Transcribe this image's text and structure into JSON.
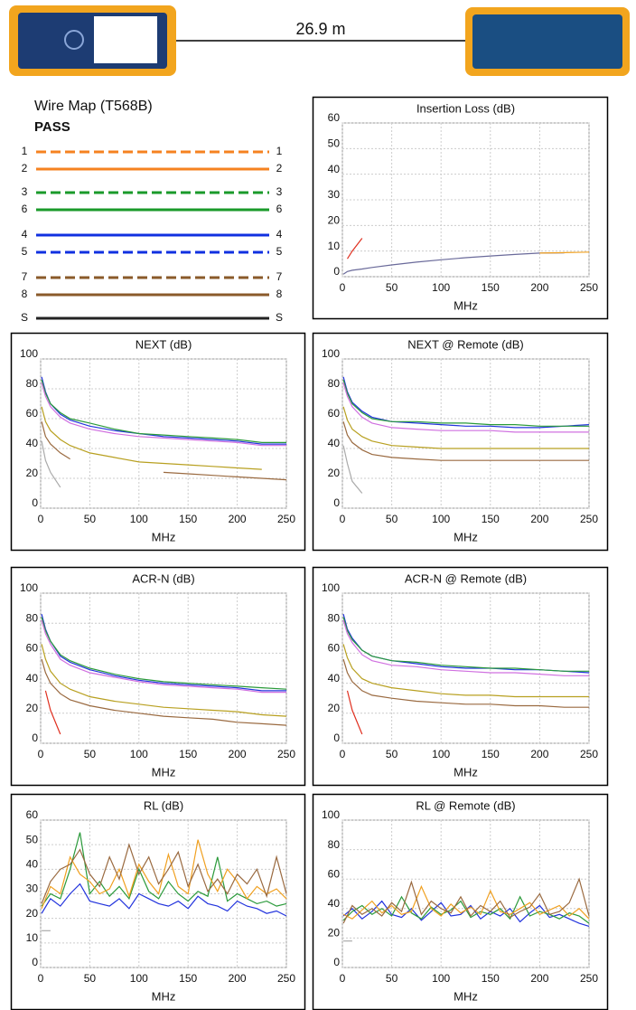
{
  "cable": {
    "length": "26.9 m"
  },
  "wire_map": {
    "title": "Wire Map (T568B)",
    "result": "PASS",
    "pairs": [
      {
        "left": "1",
        "right": "1",
        "color": "#f58220",
        "dashed": true
      },
      {
        "left": "2",
        "right": "2",
        "color": "#f58220",
        "dashed": false
      },
      {
        "left": "3",
        "right": "3",
        "color": "#1a9a2a",
        "dashed": true
      },
      {
        "left": "6",
        "right": "6",
        "color": "#1a9a2a",
        "dashed": false
      },
      {
        "left": "4",
        "right": "4",
        "color": "#1030e0",
        "dashed": false
      },
      {
        "left": "5",
        "right": "5",
        "color": "#1030e0",
        "dashed": true
      },
      {
        "left": "7",
        "right": "7",
        "color": "#8a5a2a",
        "dashed": true
      },
      {
        "left": "8",
        "right": "8",
        "color": "#8a5a2a",
        "dashed": false
      },
      {
        "left": "S",
        "right": "S",
        "color": "#222222",
        "dashed": false
      }
    ]
  },
  "chart_data": [
    {
      "type": "line",
      "title": "Insertion Loss (dB)",
      "x_label": "MHz",
      "x": [
        1,
        5,
        10,
        20,
        30,
        50,
        75,
        100,
        125,
        150,
        175,
        200,
        225,
        250
      ],
      "xlim": [
        0,
        250
      ],
      "xticks": [
        0,
        50,
        100,
        150,
        200,
        250
      ],
      "ylim": [
        0,
        60
      ],
      "yticks": [
        0,
        10,
        20,
        30,
        40,
        50,
        60
      ],
      "grid": true,
      "series": [
        {
          "color": "#6a6a9a",
          "values": [
            1,
            2,
            2.5,
            3,
            3.6,
            4.6,
            5.7,
            6.6,
            7.4,
            8.1,
            8.7,
            9.2,
            9.3,
            null
          ]
        },
        {
          "color": "#f0a020",
          "values": [
            null,
            null,
            null,
            null,
            null,
            null,
            null,
            null,
            null,
            null,
            null,
            9.2,
            9.4,
            9.6
          ]
        },
        {
          "color": "#e03020",
          "values": [
            null,
            7,
            10,
            15,
            null,
            null,
            null,
            null,
            null,
            null,
            null,
            null,
            null,
            null
          ]
        }
      ]
    },
    {
      "type": "line",
      "title": "NEXT (dB)",
      "x_label": "MHz",
      "x": [
        1,
        5,
        10,
        20,
        30,
        50,
        75,
        100,
        125,
        150,
        175,
        200,
        225,
        250
      ],
      "xlim": [
        0,
        250
      ],
      "xticks": [
        0,
        50,
        100,
        150,
        200,
        250
      ],
      "ylim": [
        0,
        100
      ],
      "yticks": [
        0,
        20,
        40,
        60,
        80,
        100
      ],
      "grid": true,
      "series": [
        {
          "color": "#2233dd",
          "values": [
            88,
            78,
            70,
            63,
            59,
            55,
            52,
            50,
            48,
            47,
            46,
            45,
            43,
            43
          ]
        },
        {
          "color": "#2a9a3a",
          "values": [
            86,
            77,
            70,
            64,
            60,
            57,
            53,
            50,
            49,
            48,
            47,
            46,
            44,
            44
          ]
        },
        {
          "color": "#d070e0",
          "values": [
            84,
            75,
            68,
            61,
            57,
            53,
            50,
            48,
            47,
            46,
            45,
            44,
            42,
            42
          ]
        },
        {
          "color": "#b8a020",
          "values": [
            68,
            58,
            52,
            46,
            42,
            37,
            34,
            31,
            30,
            29,
            28,
            27,
            26,
            null
          ]
        },
        {
          "color": "#9a6a40",
          "values": [
            58,
            48,
            43,
            37,
            33,
            null,
            27,
            null,
            24,
            23,
            22,
            21,
            20,
            19
          ]
        },
        {
          "color": "#aaaaaa",
          "values": [
            45,
            32,
            24,
            14,
            null,
            null,
            null,
            null,
            null,
            null,
            null,
            null,
            null,
            null
          ]
        }
      ]
    },
    {
      "type": "line",
      "title": "NEXT @ Remote (dB)",
      "x_label": "MHz",
      "x": [
        1,
        5,
        10,
        20,
        30,
        50,
        75,
        100,
        125,
        150,
        175,
        200,
        225,
        250
      ],
      "xlim": [
        0,
        250
      ],
      "xticks": [
        0,
        50,
        100,
        150,
        200,
        250
      ],
      "ylim": [
        0,
        100
      ],
      "yticks": [
        0,
        20,
        40,
        60,
        80,
        100
      ],
      "grid": true,
      "series": [
        {
          "color": "#2233dd",
          "values": [
            88,
            78,
            71,
            65,
            61,
            58,
            57,
            56,
            55,
            55,
            54,
            54,
            55,
            56
          ]
        },
        {
          "color": "#2a9a3a",
          "values": [
            86,
            77,
            70,
            64,
            60,
            58,
            58,
            57,
            57,
            56,
            56,
            55,
            55,
            55
          ]
        },
        {
          "color": "#d070e0",
          "values": [
            84,
            75,
            68,
            61,
            57,
            54,
            53,
            52,
            52,
            52,
            51,
            51,
            51,
            51
          ]
        },
        {
          "color": "#b8a020",
          "values": [
            68,
            59,
            53,
            48,
            45,
            42,
            41,
            40,
            40,
            40,
            40,
            40,
            40,
            40
          ]
        },
        {
          "color": "#9a6a40",
          "values": [
            58,
            49,
            44,
            39,
            36,
            34,
            33,
            32,
            32,
            32,
            32,
            32,
            32,
            32
          ]
        },
        {
          "color": "#aaaaaa",
          "values": [
            42,
            30,
            18,
            10,
            null,
            null,
            null,
            null,
            null,
            null,
            null,
            null,
            null,
            null
          ]
        }
      ]
    },
    {
      "type": "line",
      "title": "ACR-N (dB)",
      "x_label": "MHz",
      "x": [
        1,
        5,
        10,
        20,
        30,
        50,
        75,
        100,
        125,
        150,
        175,
        200,
        225,
        250
      ],
      "xlim": [
        0,
        250
      ],
      "xticks": [
        0,
        50,
        100,
        150,
        200,
        250
      ],
      "ylim": [
        0,
        100
      ],
      "yticks": [
        0,
        20,
        40,
        60,
        80,
        100
      ],
      "grid": true,
      "series": [
        {
          "color": "#2233dd",
          "values": [
            86,
            76,
            68,
            58,
            54,
            49,
            45,
            42,
            40,
            39,
            38,
            37,
            35,
            35
          ]
        },
        {
          "color": "#2a9a3a",
          "values": [
            84,
            75,
            68,
            59,
            55,
            50,
            46,
            43,
            41,
            40,
            39,
            38,
            37,
            36
          ]
        },
        {
          "color": "#d070e0",
          "values": [
            82,
            73,
            66,
            56,
            52,
            47,
            44,
            41,
            39,
            38,
            37,
            36,
            34,
            34
          ]
        },
        {
          "color": "#b8a020",
          "values": [
            66,
            56,
            48,
            40,
            36,
            31,
            28,
            26,
            24,
            23,
            22,
            21,
            19,
            18
          ]
        },
        {
          "color": "#9a6a40",
          "values": [
            56,
            47,
            40,
            33,
            29,
            25,
            22,
            20,
            18,
            17,
            16,
            14,
            13,
            12
          ]
        },
        {
          "color": "#e03020",
          "values": [
            null,
            35,
            22,
            6,
            null,
            null,
            null,
            null,
            null,
            null,
            null,
            null,
            null,
            null
          ]
        }
      ]
    },
    {
      "type": "line",
      "title": "ACR-N @ Remote (dB)",
      "x_label": "MHz",
      "x": [
        1,
        5,
        10,
        20,
        30,
        50,
        75,
        100,
        125,
        150,
        175,
        200,
        225,
        250
      ],
      "xlim": [
        0,
        250
      ],
      "xticks": [
        0,
        50,
        100,
        150,
        200,
        250
      ],
      "ylim": [
        0,
        100
      ],
      "yticks": [
        0,
        20,
        40,
        60,
        80,
        100
      ],
      "grid": true,
      "series": [
        {
          "color": "#2233dd",
          "values": [
            86,
            76,
            70,
            62,
            58,
            55,
            53,
            51,
            50,
            50,
            49,
            49,
            48,
            47
          ]
        },
        {
          "color": "#2a9a3a",
          "values": [
            84,
            75,
            69,
            62,
            58,
            55,
            54,
            52,
            51,
            50,
            50,
            49,
            48,
            48
          ]
        },
        {
          "color": "#d070e0",
          "values": [
            82,
            73,
            67,
            59,
            55,
            52,
            51,
            49,
            48,
            47,
            47,
            46,
            45,
            45
          ]
        },
        {
          "color": "#b8a020",
          "values": [
            66,
            57,
            50,
            43,
            40,
            37,
            35,
            33,
            32,
            32,
            31,
            31,
            31,
            31
          ]
        },
        {
          "color": "#9a6a40",
          "values": [
            56,
            47,
            41,
            35,
            32,
            30,
            28,
            27,
            26,
            26,
            25,
            25,
            24,
            24
          ]
        },
        {
          "color": "#e03020",
          "values": [
            null,
            35,
            22,
            6,
            null,
            null,
            null,
            null,
            null,
            null,
            null,
            null,
            null,
            null
          ]
        }
      ]
    },
    {
      "type": "line",
      "title": "RL (dB)",
      "x_label": "MHz",
      "x": [
        1,
        10,
        20,
        30,
        40,
        50,
        60,
        70,
        80,
        90,
        100,
        110,
        120,
        130,
        140,
        150,
        160,
        170,
        180,
        190,
        200,
        210,
        220,
        230,
        240,
        250
      ],
      "xlim": [
        0,
        250
      ],
      "xticks": [
        0,
        50,
        100,
        150,
        200,
        250
      ],
      "ylim": [
        0,
        60
      ],
      "yticks": [
        0,
        10,
        20,
        30,
        40,
        50,
        60
      ],
      "grid": true,
      "series": [
        {
          "color": "#2233dd",
          "values": [
            22,
            28,
            25,
            30,
            34,
            27,
            26,
            25,
            28,
            24,
            30,
            28,
            26,
            25,
            27,
            24,
            29,
            26,
            25,
            23,
            27,
            25,
            24,
            22,
            23,
            21
          ]
        },
        {
          "color": "#2a9a3a",
          "values": [
            25,
            30,
            28,
            40,
            55,
            30,
            35,
            29,
            33,
            28,
            40,
            31,
            28,
            35,
            30,
            27,
            31,
            29,
            45,
            27,
            30,
            28,
            26,
            27,
            25,
            26
          ]
        },
        {
          "color": "#f0a020",
          "values": [
            24,
            33,
            30,
            45,
            38,
            35,
            30,
            32,
            40,
            29,
            42,
            35,
            30,
            46,
            33,
            30,
            52,
            38,
            31,
            40,
            35,
            28,
            33,
            30,
            32,
            28
          ]
        },
        {
          "color": "#9a6a40",
          "values": [
            26,
            35,
            40,
            42,
            48,
            38,
            33,
            45,
            36,
            50,
            38,
            45,
            34,
            40,
            47,
            33,
            42,
            31,
            36,
            30,
            38,
            34,
            40,
            29,
            45,
            30
          ]
        },
        {
          "color": "#aaaaaa",
          "values": [
            15,
            15,
            null,
            null,
            null,
            null,
            null,
            null,
            null,
            null,
            null,
            null,
            null,
            null,
            null,
            null,
            null,
            null,
            null,
            null,
            null,
            null,
            null,
            null,
            null,
            null
          ]
        }
      ]
    },
    {
      "type": "line",
      "title": "RL @ Remote (dB)",
      "x_label": "MHz",
      "x": [
        1,
        10,
        20,
        30,
        40,
        50,
        60,
        70,
        80,
        90,
        100,
        110,
        120,
        130,
        140,
        150,
        160,
        170,
        180,
        190,
        200,
        210,
        220,
        230,
        240,
        250
      ],
      "xlim": [
        0,
        250
      ],
      "xticks": [
        0,
        50,
        100,
        150,
        200,
        250
      ],
      "ylim": [
        0,
        100
      ],
      "yticks": [
        0,
        20,
        40,
        60,
        80,
        100
      ],
      "grid": true,
      "series": [
        {
          "color": "#2233dd",
          "values": [
            35,
            40,
            33,
            38,
            45,
            36,
            34,
            40,
            32,
            38,
            44,
            35,
            36,
            42,
            33,
            38,
            35,
            40,
            31,
            37,
            42,
            34,
            36,
            33,
            30,
            28
          ]
        },
        {
          "color": "#2a9a3a",
          "values": [
            32,
            38,
            42,
            36,
            40,
            35,
            48,
            37,
            33,
            41,
            36,
            39,
            45,
            34,
            38,
            36,
            40,
            33,
            48,
            35,
            38,
            36,
            33,
            37,
            35,
            30
          ]
        },
        {
          "color": "#f0a020",
          "values": [
            36,
            33,
            39,
            45,
            37,
            42,
            36,
            38,
            55,
            40,
            35,
            43,
            37,
            41,
            36,
            52,
            38,
            36,
            40,
            44,
            36,
            39,
            42,
            35,
            40,
            33
          ]
        },
        {
          "color": "#9a6a40",
          "values": [
            30,
            42,
            36,
            40,
            35,
            44,
            38,
            58,
            36,
            45,
            40,
            37,
            48,
            35,
            42,
            38,
            45,
            34,
            38,
            41,
            50,
            36,
            38,
            44,
            60,
            35
          ]
        },
        {
          "color": "#aaaaaa",
          "values": [
            18,
            18,
            null,
            null,
            null,
            null,
            null,
            null,
            null,
            null,
            null,
            null,
            null,
            null,
            null,
            null,
            null,
            null,
            null,
            null,
            null,
            null,
            null,
            null,
            null,
            null
          ]
        }
      ]
    }
  ]
}
